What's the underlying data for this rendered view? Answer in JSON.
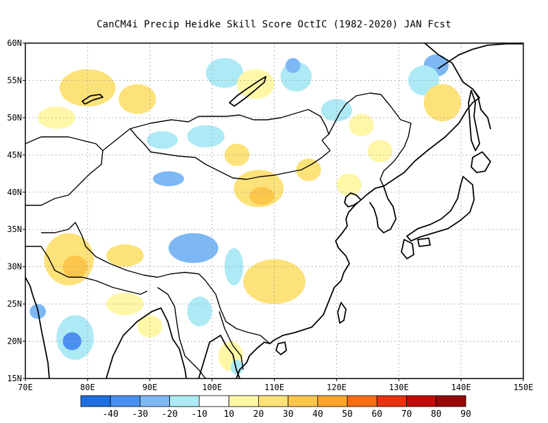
{
  "title": "CanCM4i Precip Heidke Skill Score OctIC (1982-2020) JAN Fcst",
  "map": {
    "lon_range": [
      70,
      150
    ],
    "lat_range": [
      15,
      60
    ],
    "lon_ticks": [
      {
        "value": 70,
        "label": "70E"
      },
      {
        "value": 80,
        "label": "80E"
      },
      {
        "value": 90,
        "label": "90E"
      },
      {
        "value": 100,
        "label": "100E"
      },
      {
        "value": 110,
        "label": "110E"
      },
      {
        "value": 120,
        "label": "120E"
      },
      {
        "value": 130,
        "label": "130E"
      },
      {
        "value": 140,
        "label": "140E"
      },
      {
        "value": 150,
        "label": "150E"
      }
    ],
    "lat_ticks": [
      {
        "value": 15,
        "label": "15N"
      },
      {
        "value": 20,
        "label": "20N"
      },
      {
        "value": 25,
        "label": "25N"
      },
      {
        "value": 30,
        "label": "30N"
      },
      {
        "value": 35,
        "label": "35N"
      },
      {
        "value": 40,
        "label": "40N"
      },
      {
        "value": 45,
        "label": "45N"
      },
      {
        "value": 50,
        "label": "50N"
      },
      {
        "value": 55,
        "label": "55N"
      },
      {
        "value": 60,
        "label": "60N"
      }
    ],
    "grid": "dotted"
  },
  "colorbar": {
    "labels": [
      "-40",
      "-30",
      "-20",
      "-10",
      "10",
      "20",
      "30",
      "40",
      "50",
      "60",
      "70",
      "80",
      "90"
    ],
    "colors": [
      "#1f6fe0",
      "#4a8ff0",
      "#7db8f5",
      "#aeeaf5",
      "#ffffff",
      "#fff7a8",
      "#fde27a",
      "#fcc64b",
      "#fba52a",
      "#f96d14",
      "#e8320e",
      "#c10c0c",
      "#970808"
    ]
  },
  "chart_data": {
    "type": "heatmap",
    "title": "CanCM4i Precip Heidke Skill Score OctIC (1982-2020) JAN Fcst",
    "x_range": [
      70,
      150
    ],
    "y_range": [
      15,
      60
    ],
    "levels": [
      -40,
      -30,
      -20,
      -10,
      10,
      20,
      30,
      40,
      50,
      60,
      70,
      80,
      90
    ],
    "regions": [
      {
        "lon": 80,
        "lat": 54,
        "rx": 4.5,
        "ry": 2.5,
        "value": 25
      },
      {
        "lon": 88,
        "lat": 52.5,
        "rx": 3,
        "ry": 2,
        "value": 20
      },
      {
        "lon": 75,
        "lat": 50,
        "rx": 3,
        "ry": 1.5,
        "value": 15
      },
      {
        "lon": 77,
        "lat": 31,
        "rx": 4,
        "ry": 3.5,
        "value": 20
      },
      {
        "lon": 78,
        "lat": 30,
        "rx": 2,
        "ry": 1.5,
        "value": 30
      },
      {
        "lon": 86,
        "lat": 31.5,
        "rx": 3,
        "ry": 1.5,
        "value": 20
      },
      {
        "lon": 97,
        "lat": 32.5,
        "rx": 4,
        "ry": 2,
        "value": -25
      },
      {
        "lon": 93,
        "lat": 41.8,
        "rx": 2.5,
        "ry": 1,
        "value": -25
      },
      {
        "lon": 78,
        "lat": 20.5,
        "rx": 3,
        "ry": 3,
        "value": -15
      },
      {
        "lon": 77.5,
        "lat": 20,
        "rx": 1.5,
        "ry": 1.2,
        "value": -35
      },
      {
        "lon": 72,
        "lat": 24,
        "rx": 1.3,
        "ry": 1,
        "value": -30
      },
      {
        "lon": 103.5,
        "lat": 30,
        "rx": 1.5,
        "ry": 2.5,
        "value": -20
      },
      {
        "lon": 107.5,
        "lat": 40.5,
        "rx": 4,
        "ry": 2.5,
        "value": 20
      },
      {
        "lon": 108,
        "lat": 39.5,
        "rx": 2,
        "ry": 1.2,
        "value": 30
      },
      {
        "lon": 110,
        "lat": 28,
        "rx": 5,
        "ry": 3,
        "value": 20
      },
      {
        "lon": 104,
        "lat": 45,
        "rx": 2,
        "ry": 1.5,
        "value": 20
      },
      {
        "lon": 99,
        "lat": 47.5,
        "rx": 3,
        "ry": 1.5,
        "value": -15
      },
      {
        "lon": 92,
        "lat": 47,
        "rx": 2.5,
        "ry": 1.2,
        "value": -15
      },
      {
        "lon": 102,
        "lat": 56,
        "rx": 3,
        "ry": 2,
        "value": -15
      },
      {
        "lon": 113.5,
        "lat": 55.5,
        "rx": 2.5,
        "ry": 2,
        "value": -15
      },
      {
        "lon": 113,
        "lat": 57,
        "rx": 1.2,
        "ry": 1,
        "value": -30
      },
      {
        "lon": 136,
        "lat": 57,
        "rx": 2,
        "ry": 1.5,
        "value": -30
      },
      {
        "lon": 134,
        "lat": 55,
        "rx": 2.5,
        "ry": 2,
        "value": -15
      },
      {
        "lon": 137,
        "lat": 52,
        "rx": 3,
        "ry": 2.5,
        "value": 20
      },
      {
        "lon": 107,
        "lat": 54.5,
        "rx": 3,
        "ry": 2,
        "value": 15
      },
      {
        "lon": 115.5,
        "lat": 43,
        "rx": 2,
        "ry": 1.5,
        "value": 20
      },
      {
        "lon": 120,
        "lat": 51,
        "rx": 2.5,
        "ry": 1.5,
        "value": -15
      },
      {
        "lon": 124,
        "lat": 49,
        "rx": 2,
        "ry": 1.5,
        "value": 15
      },
      {
        "lon": 127,
        "lat": 45.5,
        "rx": 2,
        "ry": 1.5,
        "value": 15
      },
      {
        "lon": 122,
        "lat": 41,
        "rx": 2,
        "ry": 1.5,
        "value": 15
      },
      {
        "lon": 86,
        "lat": 25,
        "rx": 3,
        "ry": 1.5,
        "value": 15
      },
      {
        "lon": 90,
        "lat": 22,
        "rx": 2,
        "ry": 1.5,
        "value": 15
      },
      {
        "lon": 98,
        "lat": 24,
        "rx": 2,
        "ry": 2,
        "value": -15
      },
      {
        "lon": 103,
        "lat": 18,
        "rx": 2,
        "ry": 2,
        "value": 15
      },
      {
        "lon": 104,
        "lat": 16.5,
        "rx": 1,
        "ry": 1,
        "value": -20
      }
    ]
  }
}
